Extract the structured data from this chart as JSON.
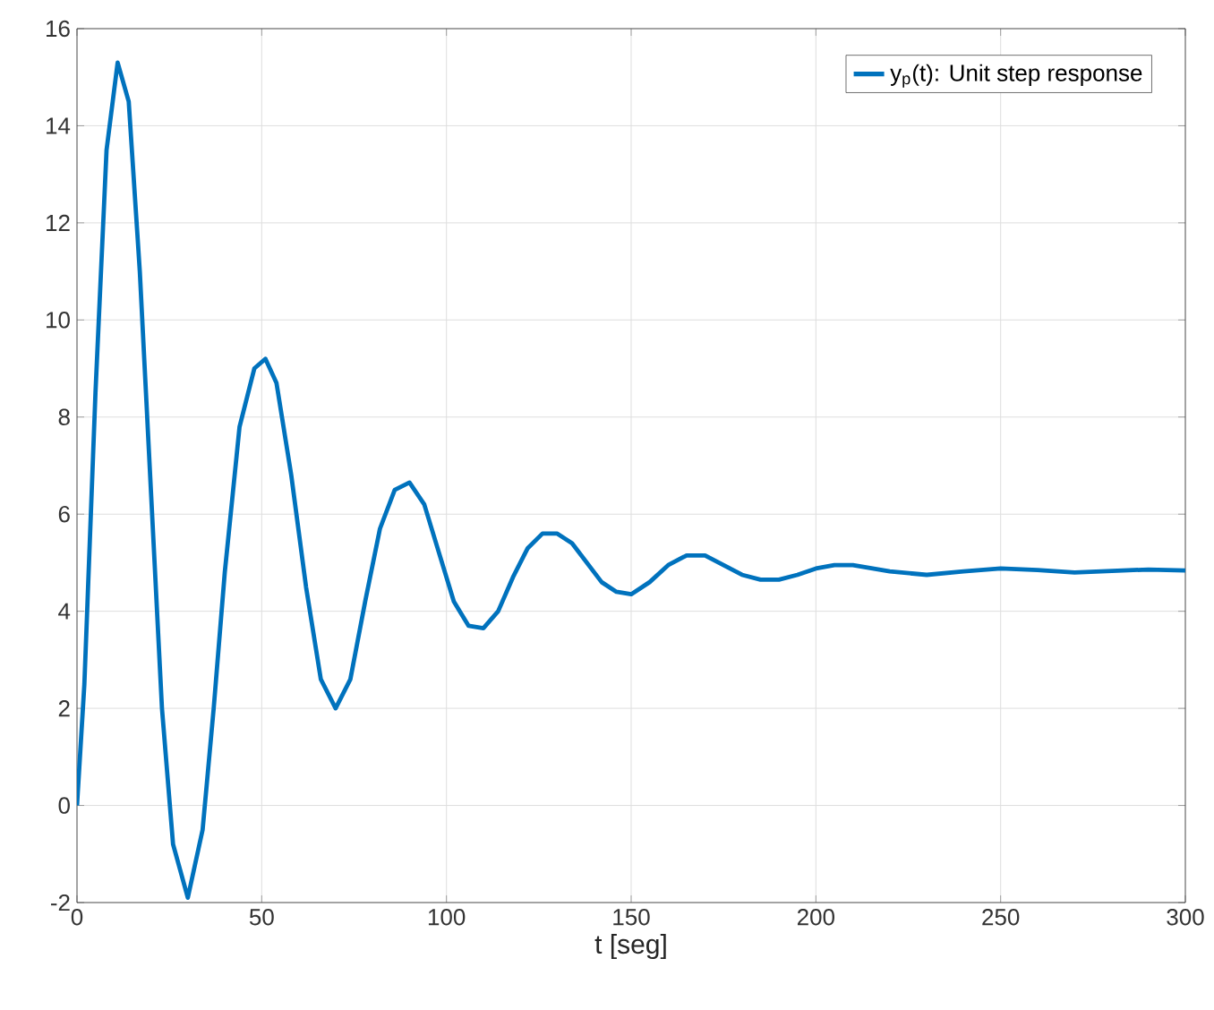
{
  "chart_data": {
    "type": "line",
    "xlabel": "t [seg]",
    "xlim": [
      0,
      300
    ],
    "ylim": [
      -2,
      16
    ],
    "xticks": [
      0,
      50,
      100,
      150,
      200,
      250,
      300
    ],
    "yticks": [
      -2,
      0,
      2,
      4,
      6,
      8,
      10,
      12,
      14,
      16
    ],
    "grid": true,
    "legend": "top right",
    "marker": "none",
    "line_style": "solid",
    "series": [
      {
        "name": "y$_{p}$(t): Unit step response",
        "color": "#0072bd",
        "x": [
          0,
          2,
          5,
          8,
          11,
          14,
          17,
          20,
          23,
          26,
          30,
          34,
          37,
          40,
          44,
          48,
          51,
          54,
          58,
          62,
          66,
          70,
          74,
          78,
          82,
          86,
          90,
          94,
          98,
          102,
          106,
          110,
          114,
          118,
          122,
          126,
          130,
          134,
          138,
          142,
          146,
          150,
          155,
          160,
          165,
          170,
          175,
          180,
          185,
          190,
          195,
          200,
          205,
          210,
          220,
          230,
          240,
          250,
          260,
          270,
          280,
          290,
          300
        ],
        "values": [
          0,
          2.5,
          8.5,
          13.5,
          15.3,
          14.5,
          11,
          6.5,
          2,
          -0.8,
          -1.9,
          -0.5,
          2,
          4.8,
          7.8,
          9.0,
          9.2,
          8.7,
          6.8,
          4.5,
          2.6,
          2.0,
          2.6,
          4.2,
          5.7,
          6.5,
          6.65,
          6.2,
          5.2,
          4.2,
          3.7,
          3.65,
          4.0,
          4.7,
          5.3,
          5.6,
          5.6,
          5.4,
          5.0,
          4.6,
          4.4,
          4.35,
          4.6,
          4.95,
          5.15,
          5.15,
          4.95,
          4.75,
          4.65,
          4.65,
          4.75,
          4.88,
          4.95,
          4.95,
          4.82,
          4.75,
          4.82,
          4.88,
          4.85,
          4.8,
          4.83,
          4.86,
          4.84
        ]
      }
    ]
  }
}
